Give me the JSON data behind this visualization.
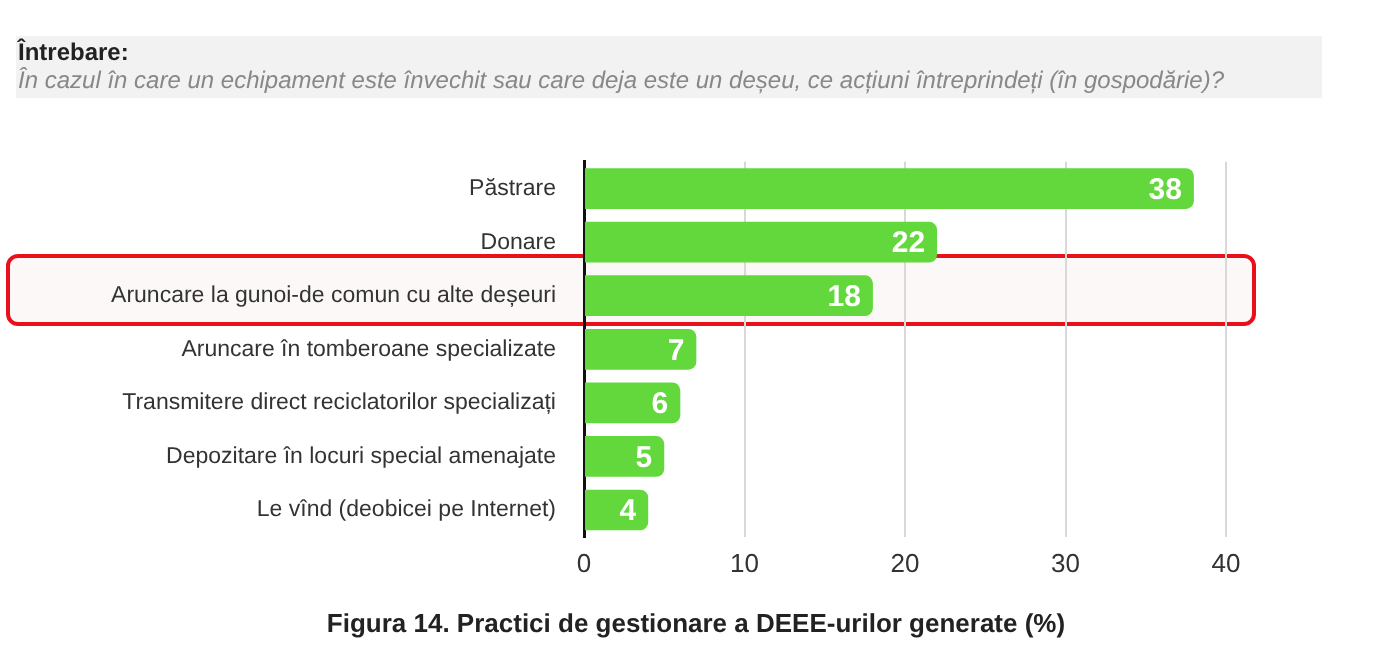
{
  "chart_data": {
    "type": "bar",
    "orientation": "horizontal",
    "title": "Întrebare:",
    "subtitle": "În cazul în care un echipament este învechit sau care deja este un deșeu, ce acțiuni întreprindeți (în gospodărie)?",
    "categories": [
      "Păstrare",
      "Donare",
      "Aruncare la gunoi-de comun cu alte deșeuri",
      "Aruncare în tomberoane specializate",
      "Transmitere direct reciclatorilor specializați",
      "Depozitare în locuri special amenajate",
      "Le vînd (deobicei pe Internet)"
    ],
    "values": [
      38,
      22,
      18,
      7,
      6,
      5,
      4
    ],
    "color": "#62d83c",
    "xlim": [
      0,
      40
    ],
    "xticks": [
      0,
      10,
      20,
      30,
      40
    ],
    "grid": "x",
    "data_labels": true,
    "legend": false,
    "annotations": [
      "Figura 14. Practici de gestionare a DEEE-urilor generate (%)"
    ]
  }
}
